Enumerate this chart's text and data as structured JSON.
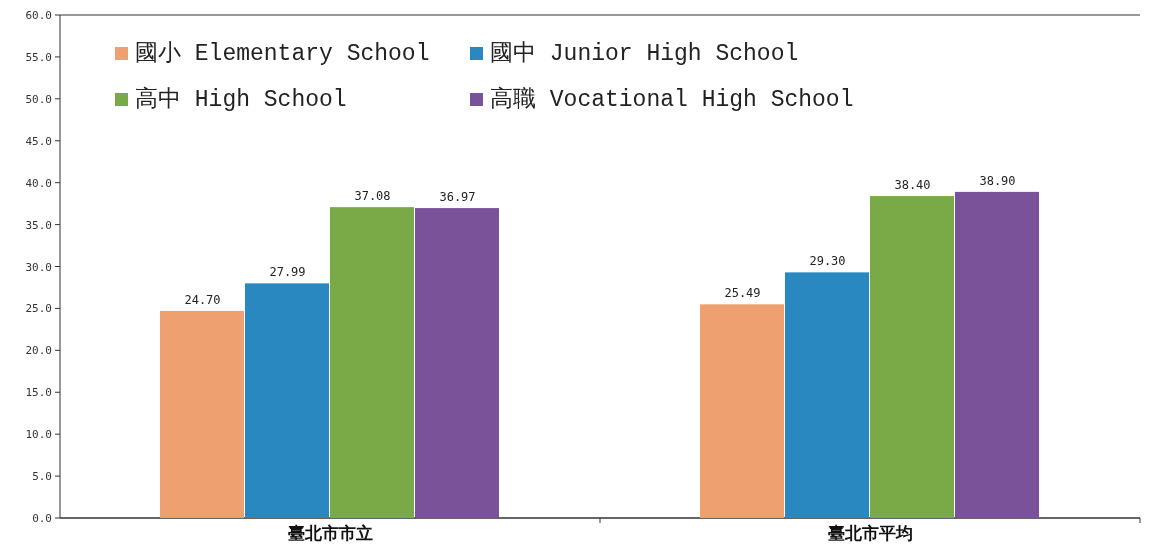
{
  "chart_data": {
    "type": "bar",
    "categories": [
      "臺北市市立",
      "臺北市平均"
    ],
    "series": [
      {
        "name": "國小 Elementary School",
        "color": "#eea070",
        "values": [
          24.7,
          25.49
        ],
        "value_labels": [
          "24.70",
          "25.49"
        ]
      },
      {
        "name": "國中 Junior High School",
        "color": "#2a88c0",
        "values": [
          27.99,
          29.3
        ],
        "value_labels": [
          "27.99",
          "29.30"
        ]
      },
      {
        "name": "高中 High School",
        "color": "#7aaa48",
        "values": [
          37.08,
          38.4
        ],
        "value_labels": [
          "37.08",
          "38.40"
        ]
      },
      {
        "name": "高職 Vocational High School",
        "color": "#7a529a",
        "values": [
          36.97,
          38.9
        ],
        "value_labels": [
          "36.97",
          "38.90"
        ]
      }
    ],
    "ylim": [
      0,
      60
    ],
    "yticks": [
      {
        "value": 0,
        "label": "0.0"
      },
      {
        "value": 5,
        "label": "5.0"
      },
      {
        "value": 10,
        "label": "10.0"
      },
      {
        "value": 15,
        "label": "15.0"
      },
      {
        "value": 20,
        "label": "20.0"
      },
      {
        "value": 25,
        "label": "25.0"
      },
      {
        "value": 30,
        "label": "30.0"
      },
      {
        "value": 35,
        "label": "35.0"
      },
      {
        "value": 40,
        "label": "40.0"
      },
      {
        "value": 45,
        "label": "45.0"
      },
      {
        "value": 50,
        "label": "50.0"
      },
      {
        "value": 55,
        "label": "55.0"
      },
      {
        "value": 60,
        "label": "60.0"
      }
    ],
    "legend": "top left"
  }
}
